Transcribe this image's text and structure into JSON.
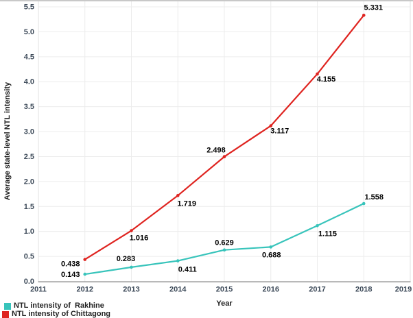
{
  "figure": {
    "y_axis_title": "Average state-level NTL intensity",
    "x_axis_title": "Year"
  },
  "legend": {
    "items": [
      {
        "label": "NTL intensity of  Rakhine"
      },
      {
        "label": "NTL intensity of Chittagong"
      }
    ]
  },
  "chart_data": {
    "type": "line",
    "title": "",
    "xlabel": "Year",
    "ylabel": "Average state-level NTL intensity",
    "x": [
      2012,
      2013,
      2014,
      2015,
      2016,
      2017,
      2018
    ],
    "series": [
      {
        "name": "NTL intensity of  Rakhine",
        "color": "#38c4bb",
        "values": [
          0.143,
          0.283,
          0.411,
          0.629,
          0.688,
          1.115,
          1.558
        ],
        "label_offsets": [
          [
            -21,
            4
          ],
          [
            -8,
            -9
          ],
          [
            14,
            16
          ],
          [
            0,
            -7
          ],
          [
            1,
            15
          ],
          [
            15,
            15
          ],
          [
            15,
            -6
          ]
        ]
      },
      {
        "name": "NTL intensity of Chittagong",
        "color": "#df2420",
        "values": [
          0.438,
          1.016,
          1.719,
          2.498,
          3.117,
          4.155,
          5.331
        ],
        "label_offsets": [
          [
            -21,
            10
          ],
          [
            11,
            14
          ],
          [
            13,
            15
          ],
          [
            -12,
            -6
          ],
          [
            13,
            11
          ],
          [
            13,
            11
          ],
          [
            14,
            -8
          ]
        ]
      }
    ],
    "xticks": [
      2011,
      2012,
      2013,
      2014,
      2015,
      2016,
      2017,
      2018,
      2019
    ],
    "yticks": [
      "0.0",
      "0.5",
      "1.0",
      "1.5",
      "2.0",
      "2.5",
      "3.0",
      "3.5",
      "4.0",
      "4.5",
      "5.0",
      "5.5"
    ],
    "xlim": [
      2011,
      2019
    ],
    "ylim": [
      0,
      5.5
    ],
    "grid": true,
    "legend_position": "bottom-left",
    "colors": {
      "gridline": "#ececec",
      "axis_line": "#8a8a8a",
      "panel_border": "#e2e2e2",
      "figure_top_border": "#c8c8c8",
      "tick_label": "#3d4a59",
      "data_label": "#000000"
    }
  }
}
